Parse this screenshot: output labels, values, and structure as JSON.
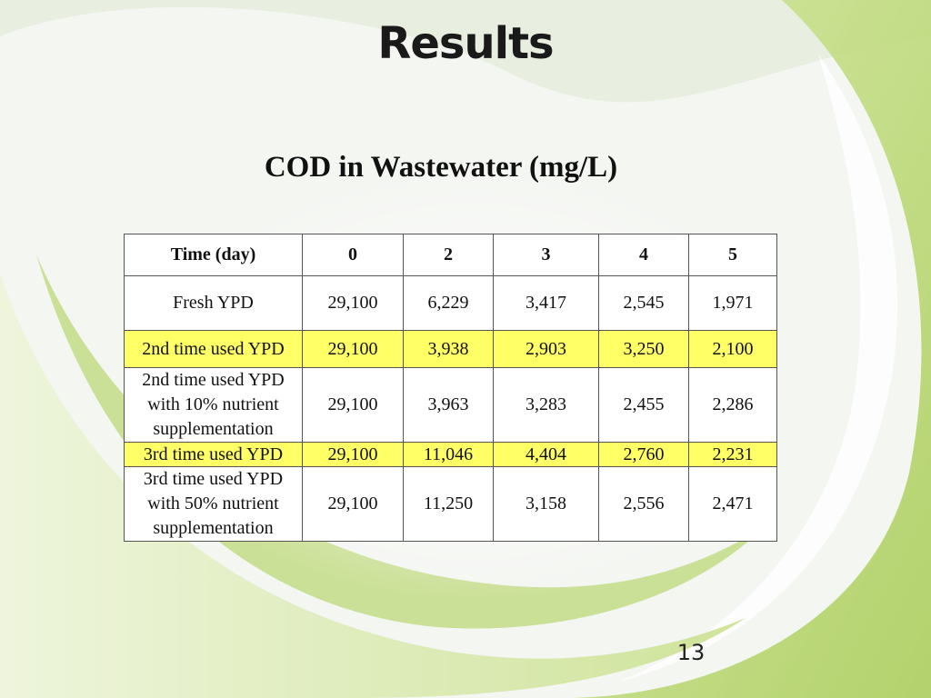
{
  "slide": {
    "title": "Results",
    "page_number": "13"
  },
  "table": {
    "caption": "COD in Wastewater (mg/L)",
    "header": [
      "Time (day)",
      "0",
      "2",
      "3",
      "4",
      "5"
    ],
    "rows": [
      {
        "label": "Fresh YPD",
        "values": [
          "29,100",
          "6,229",
          "3,417",
          "2,545",
          "1,971"
        ],
        "highlight": false
      },
      {
        "label": "2nd time used YPD",
        "values": [
          "29,100",
          "3,938",
          "2,903",
          "3,250",
          "2,100"
        ],
        "highlight": true
      },
      {
        "label": "2nd time used YPD with 10% nutrient supplementation",
        "values": [
          "29,100",
          "3,963",
          "3,283",
          "2,455",
          "2,286"
        ],
        "highlight": false
      },
      {
        "label": "3rd time used YPD",
        "values": [
          "29,100",
          "11,046",
          "4,404",
          "2,760",
          "2,231"
        ],
        "highlight": true
      },
      {
        "label": "3rd time used YPD with 50% nutrient supplementation",
        "values": [
          "29,100",
          "11,250",
          "3,158",
          "2,556",
          "2,471"
        ],
        "highlight": false
      }
    ]
  },
  "colors": {
    "highlight_row": "#ffff66",
    "background_swirl": "#c8e08a"
  }
}
